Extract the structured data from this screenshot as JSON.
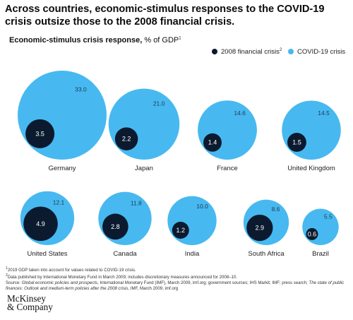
{
  "title": "Across countries, economic-stimulus responses to the COVID-19 crisis outsize those to the 2008 financial crisis.",
  "subtitle": {
    "bold": "Economic-stimulus crisis response,",
    "unit": " % of GDP",
    "marker": "1"
  },
  "legend": {
    "financial_2008": "2008 financial crisis",
    "financial_2008_marker": "2",
    "covid": "COVID-19 crisis"
  },
  "colors": {
    "covid": "#47b9f0",
    "financial_2008": "#0b1a2e",
    "covid_label": "#1e3a52",
    "financial_label": "#ffffff"
  },
  "chart_data": {
    "type": "bubble",
    "title": "Economic-stimulus crisis response",
    "unit": "% of GDP",
    "series": [
      {
        "name": "2008 financial crisis"
      },
      {
        "name": "COVID-19 crisis"
      }
    ],
    "countries": [
      {
        "name": "Germany",
        "covid": 33.0,
        "crisis_2008": 3.5,
        "covid_label": "33.0",
        "crisis_2008_label": "3.5"
      },
      {
        "name": "Japan",
        "covid": 21.0,
        "crisis_2008": 2.2,
        "covid_label": "21.0",
        "crisis_2008_label": "2.2"
      },
      {
        "name": "France",
        "covid": 14.6,
        "crisis_2008": 1.4,
        "covid_label": "14.6",
        "crisis_2008_label": "1.4"
      },
      {
        "name": "United Kingdom",
        "covid": 14.5,
        "crisis_2008": 1.5,
        "covid_label": "14.5",
        "crisis_2008_label": "1.5"
      },
      {
        "name": "United States",
        "covid": 12.1,
        "crisis_2008": 4.9,
        "covid_label": "12.1",
        "crisis_2008_label": "4.9"
      },
      {
        "name": "Canada",
        "covid": 11.8,
        "crisis_2008": 2.8,
        "covid_label": "11.8",
        "crisis_2008_label": "2.8"
      },
      {
        "name": "India",
        "covid": 10.0,
        "crisis_2008": 1.2,
        "covid_label": "10.0",
        "crisis_2008_label": "1.2"
      },
      {
        "name": "South Africa",
        "covid": 8.6,
        "crisis_2008": 2.9,
        "covid_label": "8.6",
        "crisis_2008_label": "2.9"
      },
      {
        "name": "Brazil",
        "covid": 5.5,
        "crisis_2008": 0.6,
        "covid_label": "5.5",
        "crisis_2008_label": "0.6"
      }
    ]
  },
  "footnotes": {
    "note1_marker": "1",
    "note1": "2019 GDP taken into account for values related to COVID-19 crisis.",
    "note2_marker": "2",
    "note2": "Data published by International Monetary Fund in March 2009; includes discretionary measures announced for 2008–10.",
    "source_prefix": "Source: ",
    "source_italic_1": "Global economic policies and prospects",
    "source_mid": ", International Monetary Fund (IMF), March 2009, imf.org; government sources; IHS Markit; IMF; press search; ",
    "source_italic_2": "The state of public finances: Outlook and medium-term policies after the 2008 crisis",
    "source_end": ", IMF, March 2009, imf.org"
  },
  "logo": {
    "line1": "McKinsey",
    "line2": "& Company"
  }
}
